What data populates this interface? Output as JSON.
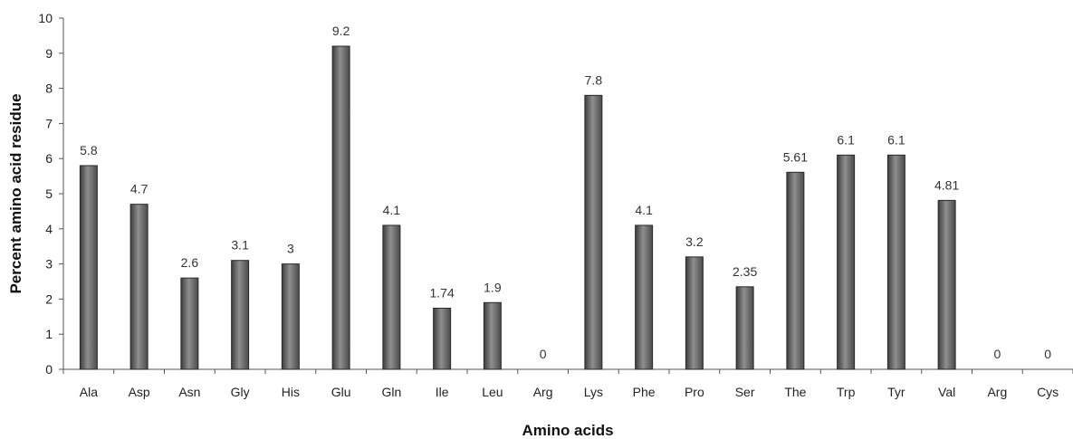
{
  "chart_data": {
    "type": "bar",
    "title": "",
    "xlabel": "Amino acids",
    "ylabel": "Percent amino acid residue",
    "ylim": [
      0,
      10
    ],
    "yticks": [
      0,
      1,
      2,
      3,
      4,
      5,
      6,
      7,
      8,
      9,
      10
    ],
    "grid": false,
    "legend": "none",
    "bar_color": "#6b6b6b",
    "categories": [
      "Ala",
      "Asp",
      "Asn",
      "Gly",
      "His",
      "Glu",
      "Gln",
      "Ile",
      "Leu",
      "Arg",
      "Lys",
      "Phe",
      "Pro",
      "Ser",
      "The",
      "Trp",
      "Tyr",
      "Val",
      "Arg",
      "Cys"
    ],
    "values": [
      5.8,
      4.7,
      2.6,
      3.1,
      3,
      9.2,
      4.1,
      1.74,
      1.9,
      0,
      7.8,
      4.1,
      3.2,
      2.35,
      5.61,
      6.1,
      6.1,
      4.81,
      0,
      0
    ],
    "data_labels": [
      "5.8",
      "4.7",
      "2.6",
      "3.1",
      "3",
      "9.2",
      "4.1",
      "1.74",
      "1.9",
      "0",
      "7.8",
      "4.1",
      "3.2",
      "2.35",
      "5.61",
      "6.1",
      "6.1",
      "4.81",
      "0",
      "0"
    ]
  }
}
